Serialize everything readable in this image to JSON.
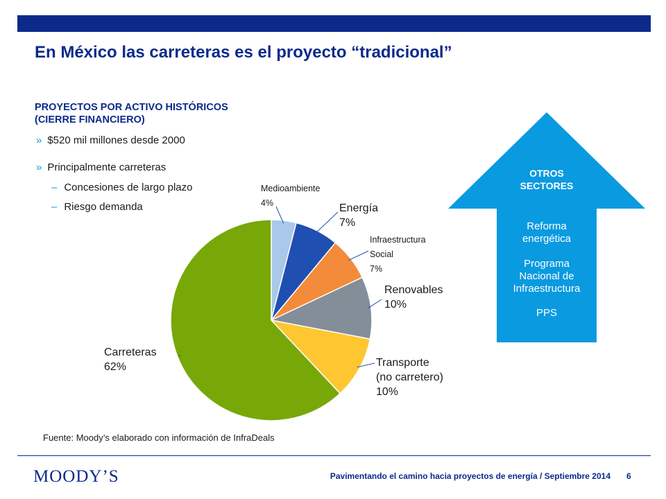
{
  "header": {
    "title": "En México las carreteras es el proyecto “tradicional”"
  },
  "left": {
    "subtitle_line1": "PROYECTOS POR ACTIVO HISTÓRICOS",
    "subtitle_line2": "(CIERRE FINANCIERO)",
    "bullets": [
      "$520 mil millones desde 2000",
      "Principalmente carreteras"
    ],
    "subbullets": [
      "Concesiones de largo plazo",
      "Riesgo demanda"
    ],
    "bullet_marker": "»",
    "sub_marker": "–",
    "source": "Fuente: Moody’s elaborado con información de InfraDeals"
  },
  "chart_data": {
    "type": "pie",
    "slices": [
      {
        "label_lines": [
          "Medioambiente",
          "4%"
        ],
        "value": 4,
        "color": "#a9c8ea"
      },
      {
        "label_lines": [
          "Energía",
          "7%"
        ],
        "value": 7,
        "color": "#1f4fb0"
      },
      {
        "label_lines": [
          "Infraestructura",
          "Social",
          "7%"
        ],
        "value": 7,
        "color": "#f38b3a"
      },
      {
        "label_lines": [
          "Renovables",
          "10%"
        ],
        "value": 10,
        "color": "#848e99"
      },
      {
        "label_lines": [
          "Transporte",
          "(no carretero)",
          "10%"
        ],
        "value": 10,
        "color": "#fec631"
      },
      {
        "label_lines": [
          "Carreteras",
          "62%"
        ],
        "value": 62,
        "color": "#77a808"
      }
    ]
  },
  "arrow": {
    "head_line1": "OTROS",
    "head_line2": "SECTORES",
    "items": [
      [
        "Reforma",
        "energética"
      ],
      [
        "Programa",
        "Nacional de",
        "Infraestructura"
      ],
      [
        "PPS"
      ]
    ],
    "color": "#0a9ae0"
  },
  "footer": {
    "logo": "MOODY’S",
    "text": "Pavimentando el camino hacia proyectos de energía  /  Septiembre 2014",
    "page": "6"
  }
}
